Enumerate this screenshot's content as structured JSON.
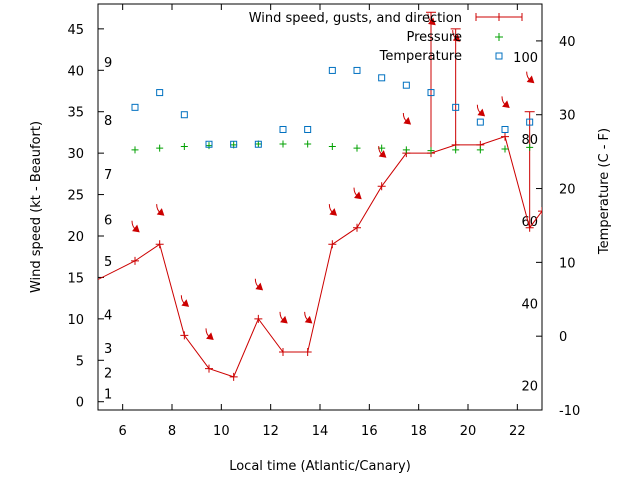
{
  "chart_data": {
    "type": "line",
    "xlabel": "Local time (Atlantic/Canary)",
    "ylabel_left": "Wind speed (kt - Beaufort)",
    "ylabel_right": "Temperature (C - F)",
    "xlim": [
      5,
      23
    ],
    "ylim_left": [
      -1,
      48
    ],
    "ylim_right": [
      -10,
      45
    ],
    "x_ticks": [
      6,
      8,
      10,
      12,
      14,
      16,
      18,
      20,
      22
    ],
    "y_left_ticks": [
      0,
      5,
      10,
      15,
      20,
      25,
      30,
      35,
      40,
      45
    ],
    "y_right_ticks": [
      -10,
      0,
      10,
      20,
      30,
      40
    ],
    "beaufort_labels": [
      {
        "value": 1,
        "label": "1"
      },
      {
        "value": 3.5,
        "label": "2"
      },
      {
        "value": 6.5,
        "label": "3"
      },
      {
        "value": 10.5,
        "label": "4"
      },
      {
        "value": 17,
        "label": "5"
      },
      {
        "value": 22,
        "label": "6"
      },
      {
        "value": 27.5,
        "label": "7"
      },
      {
        "value": 34,
        "label": "8"
      },
      {
        "value": 41,
        "label": "9"
      }
    ],
    "fahrenheit_labels": [
      {
        "celsius": -6.7,
        "label": "20"
      },
      {
        "celsius": 4.4,
        "label": "40"
      },
      {
        "celsius": 15.6,
        "label": "60"
      },
      {
        "celsius": 26.7,
        "label": "80"
      },
      {
        "celsius": 37.8,
        "label": "100"
      }
    ],
    "legend_position": "top-right",
    "series": [
      {
        "name": "Wind speed, gusts, and direction",
        "color": "#cc0000",
        "x": [
          4.5,
          6.5,
          7.5,
          8.5,
          9.5,
          10.5,
          11.5,
          12.5,
          13.5,
          14.5,
          15.5,
          16.5,
          17.5,
          18.5,
          19.5,
          20.5,
          21.5,
          22.5,
          23.0
        ],
        "values": [
          14,
          17,
          19,
          8,
          4,
          3,
          10,
          6,
          6,
          19,
          21,
          26,
          30,
          30,
          31,
          31,
          32,
          21,
          23
        ],
        "gusts": [
          {
            "x": 18.5,
            "low": 30,
            "high": 47
          },
          {
            "x": 19.5,
            "low": 31,
            "high": 45
          },
          {
            "x": 22.5,
            "low": 21,
            "high": 35
          }
        ]
      },
      {
        "name": "Pressure",
        "color": "#00a000",
        "x": [
          6.5,
          7.5,
          8.5,
          9.5,
          10.5,
          11.5,
          12.5,
          13.5,
          14.5,
          15.5,
          16.5,
          17.5,
          18.5,
          19.5,
          20.5,
          21.5,
          22.5
        ],
        "values": [
          30.4,
          30.6,
          30.8,
          30.9,
          31.0,
          31.1,
          31.1,
          31.1,
          30.8,
          30.6,
          30.6,
          30.4,
          30.3,
          30.4,
          30.4,
          30.5,
          30.7
        ]
      },
      {
        "name": "Temperature",
        "color": "#0070c0",
        "axis": "right",
        "x": [
          6.5,
          7.5,
          8.5,
          9.5,
          10.5,
          11.5,
          12.5,
          13.5,
          14.5,
          15.5,
          16.5,
          17.5,
          18.5,
          19.5,
          20.5,
          21.5,
          22.5
        ],
        "values": [
          31,
          33,
          30,
          26,
          26,
          26,
          28,
          28,
          36,
          36,
          35,
          34,
          33,
          31,
          29,
          28,
          29
        ]
      }
    ],
    "wind_arrows": [
      {
        "x": 6.5,
        "y": 21
      },
      {
        "x": 7.5,
        "y": 23
      },
      {
        "x": 8.5,
        "y": 12
      },
      {
        "x": 9.5,
        "y": 8
      },
      {
        "x": 11.5,
        "y": 14
      },
      {
        "x": 12.5,
        "y": 10
      },
      {
        "x": 13.5,
        "y": 10
      },
      {
        "x": 14.5,
        "y": 23
      },
      {
        "x": 15.5,
        "y": 25
      },
      {
        "x": 16.5,
        "y": 30
      },
      {
        "x": 17.5,
        "y": 34
      },
      {
        "x": 18.5,
        "y": 46
      },
      {
        "x": 19.5,
        "y": 44
      },
      {
        "x": 20.5,
        "y": 35
      },
      {
        "x": 21.5,
        "y": 36
      },
      {
        "x": 22.5,
        "y": 39
      }
    ]
  }
}
